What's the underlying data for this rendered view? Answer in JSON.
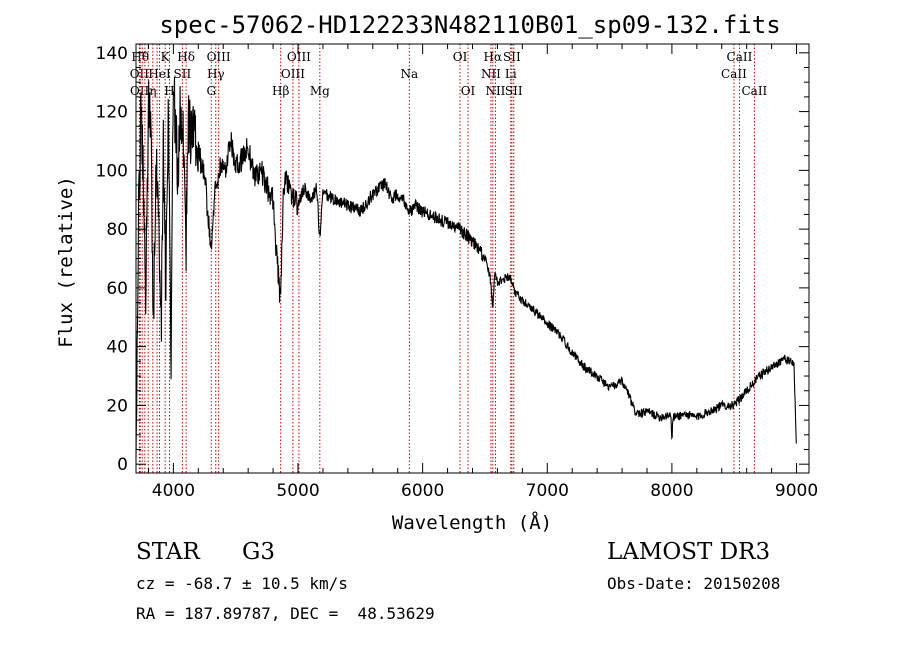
{
  "chart_data": {
    "type": "line",
    "title": "spec-57062-HD122233N482110B01_sp09-132.fits",
    "xlabel": "Wavelength (Å)",
    "ylabel": "Flux (relative)",
    "xlim": [
      3700,
      9100
    ],
    "ylim": [
      -3,
      143
    ],
    "xticks": [
      4000,
      5000,
      6000,
      7000,
      8000,
      9000
    ],
    "yticks": [
      0,
      20,
      40,
      60,
      80,
      100,
      120,
      140
    ],
    "series": [
      {
        "name": "flux",
        "x": [
          3700,
          3720,
          3740,
          3760,
          3780,
          3800,
          3820,
          3840,
          3860,
          3880,
          3900,
          3920,
          3940,
          3960,
          3980,
          4000,
          4020,
          4040,
          4060,
          4080,
          4100,
          4120,
          4150,
          4200,
          4250,
          4300,
          4340,
          4380,
          4420,
          4460,
          4500,
          4550,
          4600,
          4650,
          4700,
          4750,
          4800,
          4830,
          4861,
          4880,
          4900,
          4950,
          5000,
          5050,
          5100,
          5150,
          5175,
          5200,
          5300,
          5400,
          5500,
          5600,
          5700,
          5750,
          5800,
          5850,
          5893,
          5950,
          6000,
          6100,
          6200,
          6300,
          6400,
          6500,
          6540,
          6563,
          6580,
          6600,
          6700,
          6750,
          6800,
          6900,
          7000,
          7100,
          7200,
          7300,
          7400,
          7500,
          7600,
          7650,
          7700,
          7750,
          7800,
          7900,
          7990,
          8000,
          8010,
          8100,
          8200,
          8300,
          8400,
          8500,
          8600,
          8700,
          8800,
          8900,
          8980,
          9000
        ],
        "y": [
          2,
          85,
          118,
          95,
          60,
          128,
          110,
          50,
          100,
          88,
          40,
          110,
          60,
          120,
          30,
          128,
          110,
          100,
          124,
          114,
          70,
          120,
          110,
          106,
          98,
          74,
          95,
          102,
          100,
          112,
          100,
          104,
          108,
          98,
          100,
          94,
          90,
          70,
          54,
          92,
          96,
          92,
          88,
          94,
          90,
          94,
          76,
          92,
          90,
          88,
          86,
          92,
          96,
          90,
          92,
          90,
          86,
          88,
          86,
          84,
          82,
          80,
          76,
          70,
          64,
          54,
          66,
          62,
          64,
          58,
          56,
          52,
          48,
          44,
          38,
          33,
          30,
          26,
          28,
          24,
          18,
          17,
          18,
          16,
          17,
          9,
          16,
          17,
          16,
          18,
          20,
          20,
          25,
          30,
          33,
          36,
          34,
          4
        ]
      }
    ],
    "line_ids": [
      {
        "wave": 3734,
        "label": "Hθ",
        "row": 1
      },
      {
        "wave": 3727,
        "label": "OII",
        "row": 2
      },
      {
        "wave": 3729,
        "label": "OII",
        "row": 3
      },
      {
        "wave": 3750,
        "label": "",
        "row": 0
      },
      {
        "wave": 3771,
        "label": "",
        "row": 0
      },
      {
        "wave": 3798,
        "label": "",
        "row": 0
      },
      {
        "wave": 3835,
        "label": "η",
        "row": 3
      },
      {
        "wave": 3869,
        "label": "",
        "row": 0
      },
      {
        "wave": 3889,
        "label": "HeI",
        "row": 2
      },
      {
        "wave": 3934,
        "label": "K",
        "row": 1
      },
      {
        "wave": 3969,
        "label": "H",
        "row": 3
      },
      {
        "wave": 4072,
        "label": "SII",
        "row": 2
      },
      {
        "wave": 4102,
        "label": "Hδ",
        "row": 1
      },
      {
        "wave": 4304,
        "label": "G",
        "row": 3
      },
      {
        "wave": 4340,
        "label": "Hγ",
        "row": 2
      },
      {
        "wave": 4363,
        "label": "OIII",
        "row": 1
      },
      {
        "wave": 4861,
        "label": "Hβ",
        "row": 3
      },
      {
        "wave": 4959,
        "label": "OIII",
        "row": 2
      },
      {
        "wave": 5007,
        "label": "OIII",
        "row": 1
      },
      {
        "wave": 5175,
        "label": "Mg",
        "row": 3
      },
      {
        "wave": 5893,
        "label": "Na",
        "row": 2
      },
      {
        "wave": 6300,
        "label": "OI",
        "row": 1
      },
      {
        "wave": 6364,
        "label": "OI",
        "row": 3
      },
      {
        "wave": 6548,
        "label": "NII",
        "row": 2
      },
      {
        "wave": 6563,
        "label": "Hα",
        "row": 1
      },
      {
        "wave": 6584,
        "label": "NII",
        "row": 3
      },
      {
        "wave": 6707,
        "label": "Li",
        "row": 2
      },
      {
        "wave": 6716,
        "label": "SII",
        "row": 1
      },
      {
        "wave": 6731,
        "label": "SII",
        "row": 3
      },
      {
        "wave": 8498,
        "label": "CaII",
        "row": 2
      },
      {
        "wave": 8542,
        "label": "CaII",
        "row": 1
      },
      {
        "wave": 8662,
        "label": "CaII",
        "row": 3
      }
    ],
    "line_color": "#cc0000"
  },
  "info": {
    "object_type": "STAR",
    "subclass": "G3",
    "survey": "LAMOST DR3",
    "cz_text": "cz = -68.7 ± 10.5 km/s",
    "obs_date_text": "Obs-Date: 20150208",
    "radec_text": "RA = 187.89787, DEC =  48.53629"
  }
}
